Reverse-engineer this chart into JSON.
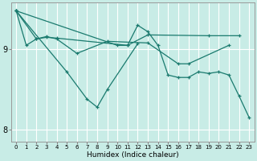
{
  "xlabel": "Humidex (Indice chaleur)",
  "bg_color": "#c8ece6",
  "grid_color": "#ffffff",
  "line_color": "#1a7a6e",
  "xlim": [
    -0.5,
    23.5
  ],
  "ylim": [
    7.85,
    9.58
  ],
  "yticks": [
    8,
    9
  ],
  "xticks": [
    0,
    1,
    2,
    3,
    4,
    5,
    6,
    7,
    8,
    9,
    10,
    11,
    12,
    13,
    14,
    15,
    16,
    17,
    18,
    19,
    20,
    21,
    22,
    23
  ],
  "series": [
    {
      "x": [
        0,
        1,
        2,
        3,
        4,
        11,
        13,
        19,
        22
      ],
      "y": [
        9.48,
        9.05,
        9.13,
        9.15,
        9.14,
        9.05,
        9.18,
        9.17,
        9.17
      ]
    },
    {
      "x": [
        0,
        2,
        3,
        4,
        6,
        9,
        13,
        16,
        17,
        21
      ],
      "y": [
        9.48,
        9.13,
        9.16,
        9.13,
        8.95,
        9.1,
        9.08,
        8.82,
        8.82,
        9.05
      ]
    },
    {
      "x": [
        0,
        5,
        7,
        8,
        9,
        12
      ],
      "y": [
        9.48,
        8.72,
        8.38,
        8.28,
        8.5,
        9.07
      ]
    },
    {
      "x": [
        0,
        10,
        11,
        12,
        13,
        14,
        15,
        16,
        17,
        18,
        19,
        20,
        21,
        22,
        23
      ],
      "y": [
        9.48,
        9.05,
        9.05,
        9.3,
        9.22,
        9.05,
        8.68,
        8.65,
        8.65,
        8.72,
        8.7,
        8.72,
        8.68,
        8.42,
        8.15
      ]
    }
  ]
}
